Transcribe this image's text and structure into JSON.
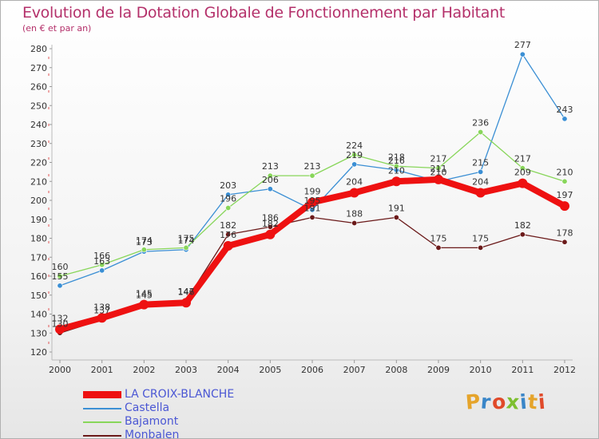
{
  "title": "Evolution de la Dotation Globale de Fonctionnement par Habitant",
  "subtitle": "(en € et par an)",
  "brand": {
    "text": "Proxiti",
    "colors": [
      "#e5a42b",
      "#3a86c8",
      "#e04a2a",
      "#7dbf2f",
      "#3a86c8",
      "#e5a42b",
      "#e04a2a"
    ]
  },
  "chart_data": {
    "type": "line",
    "categories": [
      "2000",
      "2001",
      "2002",
      "2003",
      "2004",
      "2005",
      "2006",
      "2007",
      "2008",
      "2009",
      "2010",
      "2011",
      "2012"
    ],
    "ylim": [
      120,
      280
    ],
    "yticks": [
      120,
      130,
      140,
      150,
      160,
      170,
      180,
      190,
      200,
      210,
      220,
      230,
      240,
      250,
      260,
      270,
      280
    ],
    "grid": false,
    "legend_position": "bottom-left",
    "series": [
      {
        "name": "Monbalen",
        "color": "#6b1a1a",
        "values": [
          130,
          137,
          145,
          147,
          182,
          186,
          191,
          188,
          191,
          175,
          175,
          182,
          178
        ]
      },
      {
        "name": "Castella",
        "color": "#3b8fd4",
        "values": [
          155,
          163,
          173,
          174,
          203,
          206,
          195,
          219,
          216,
          210,
          215,
          277,
          243
        ]
      },
      {
        "name": "Bajamont",
        "color": "#88d65a",
        "values": [
          160,
          166,
          174,
          175,
          196,
          213,
          213,
          224,
          218,
          217,
          236,
          217,
          210
        ]
      },
      {
        "name": "LA CROIX-BLANCHE",
        "color": "#ee1111",
        "values": [
          132,
          138,
          145,
          146,
          176,
          182,
          199,
          204,
          210,
          211,
          204,
          209,
          197
        ]
      }
    ]
  }
}
